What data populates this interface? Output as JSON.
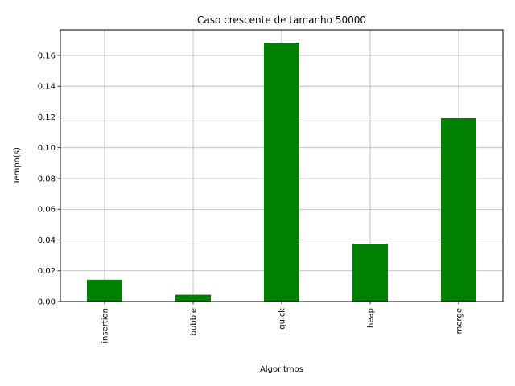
{
  "chart_data": {
    "type": "bar",
    "title": "Caso crescente de tamanho 50000",
    "xlabel": "Algoritmos",
    "ylabel": "Tempo(s)",
    "categories": [
      "insertion",
      "bubble",
      "quick",
      "heap",
      "merge"
    ],
    "values": [
      0.0142,
      0.0044,
      0.1683,
      0.0374,
      0.1192
    ],
    "ylim": [
      0,
      0.1767
    ],
    "yticks": [
      "0.00",
      "0.02",
      "0.04",
      "0.06",
      "0.08",
      "0.10",
      "0.12",
      "0.14",
      "0.16"
    ],
    "grid": true,
    "bar_color": "#008000"
  }
}
